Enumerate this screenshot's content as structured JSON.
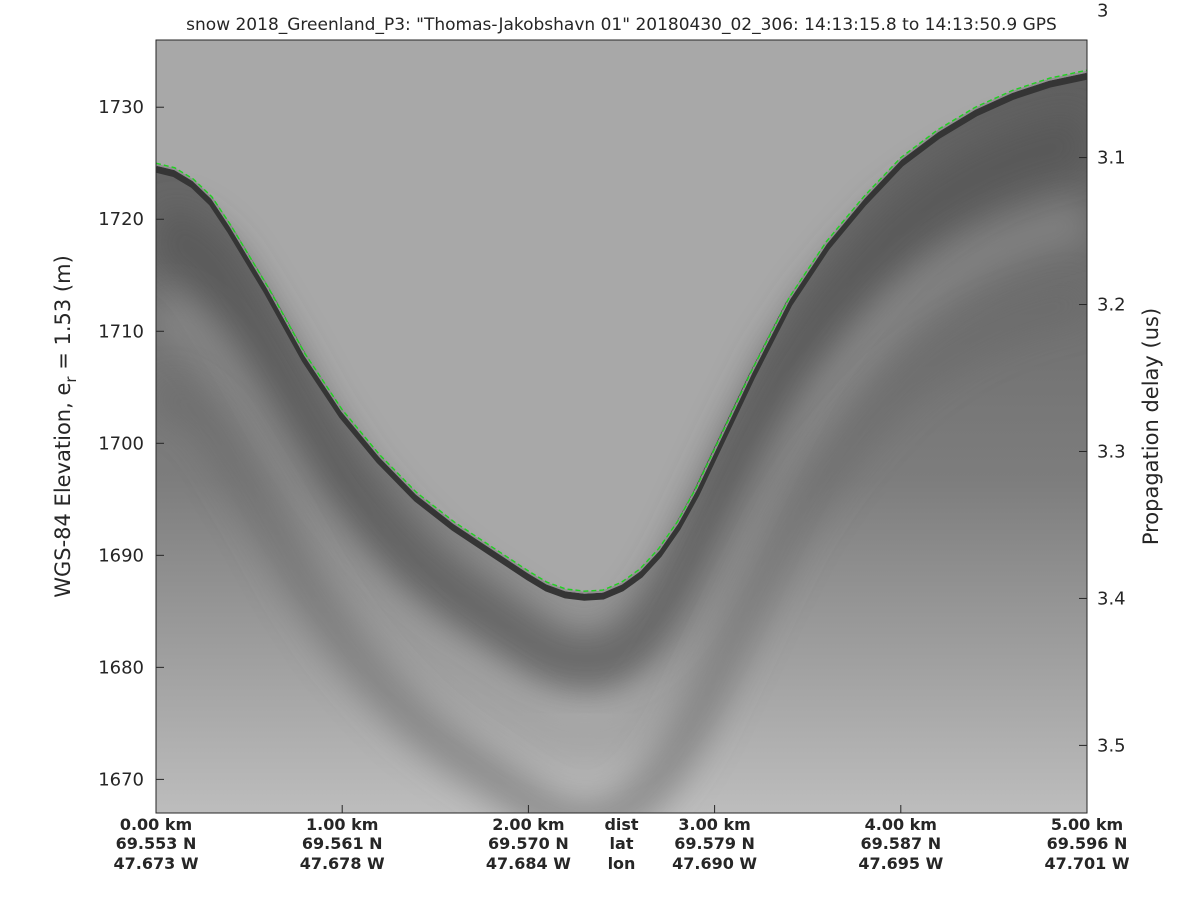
{
  "title": "snow 2018_Greenland_P3: \"Thomas-Jakobshavn 01\"  20180430_02_306: 14:13:15.8 to 14:13:50.9 GPS",
  "colors": {
    "surface_pick": "#1fd31f",
    "axis": "#262626",
    "background_echo": "#a6a6a6"
  },
  "chart_data": {
    "type": "heatmap",
    "title": "snow 2018_Greenland_P3: \"Thomas-Jakobshavn 01\"  20180430_02_306: 14:13:15.8 to 14:13:50.9 GPS",
    "colormap": "grayscale",
    "grid": false,
    "y_left": {
      "label_prefix": "WGS-84 Elevation, e",
      "label_sub": "r",
      "label_suffix": " = 1.53 (m)",
      "lim": [
        1667,
        1736
      ],
      "ticks": [
        1670,
        1680,
        1690,
        1700,
        1710,
        1720,
        1730
      ],
      "tick_labels": [
        "1670",
        "1680",
        "1690",
        "1700",
        "1710",
        "1720",
        "1730"
      ]
    },
    "y_right": {
      "label": "Propagation delay (us)",
      "lim": [
        3.02,
        3.546
      ],
      "ticks": [
        3,
        3.1,
        3.2,
        3.3,
        3.4,
        3.5
      ],
      "tick_labels": [
        "3",
        "3.1",
        "3.2",
        "3.3",
        "3.4",
        "3.5"
      ]
    },
    "x": {
      "lim": [
        0,
        5
      ],
      "ticks": [
        0,
        1,
        2,
        3,
        4,
        5
      ],
      "rows": [
        {
          "name": "dist",
          "labels": [
            "0.00 km",
            "1.00 km",
            "2.00 km",
            "3.00 km",
            "4.00 km",
            "5.00 km"
          ]
        },
        {
          "name": "lat",
          "labels": [
            "69.553 N",
            "69.561 N",
            "69.570 N",
            "69.579 N",
            "69.587 N",
            "69.596 N"
          ]
        },
        {
          "name": "lon",
          "labels": [
            "47.673 W",
            "47.678 W",
            "47.684 W",
            "47.690 W",
            "47.695 W",
            "47.701 W"
          ]
        }
      ]
    },
    "series": [
      {
        "style": "dashed",
        "color": "#1fd31f",
        "x": [
          0.0,
          0.1,
          0.2,
          0.3,
          0.4,
          0.6,
          0.8,
          1.0,
          1.2,
          1.4,
          1.6,
          1.8,
          2.0,
          2.1,
          2.2,
          2.3,
          2.4,
          2.5,
          2.6,
          2.7,
          2.8,
          2.9,
          3.0,
          3.2,
          3.4,
          3.6,
          3.8,
          4.0,
          4.2,
          4.4,
          4.6,
          4.8,
          5.0
        ],
        "y": [
          1725.0,
          1724.6,
          1723.6,
          1722.0,
          1719.5,
          1714.0,
          1708.0,
          1703.0,
          1699.0,
          1695.6,
          1693.0,
          1690.8,
          1688.6,
          1687.6,
          1687.0,
          1686.8,
          1686.9,
          1687.6,
          1688.8,
          1690.6,
          1693.0,
          1696.0,
          1699.5,
          1706.5,
          1713.0,
          1718.0,
          1722.0,
          1725.5,
          1728.0,
          1730.0,
          1731.5,
          1732.6,
          1733.3
        ]
      }
    ]
  }
}
